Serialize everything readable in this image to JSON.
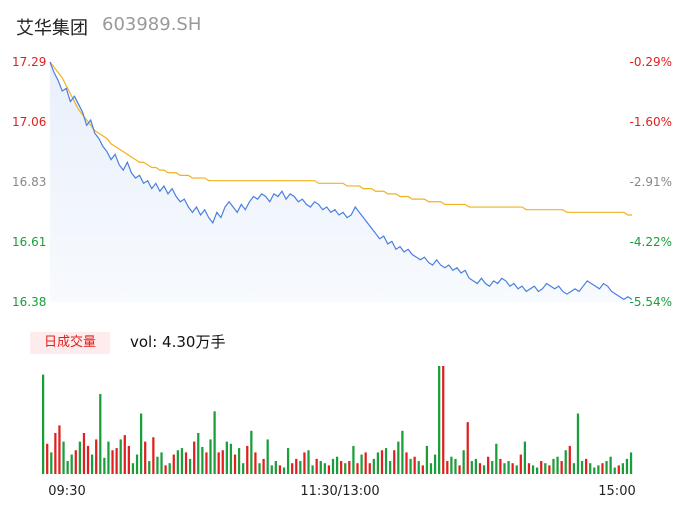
{
  "header": {
    "name": "艾华集团",
    "code": "603989.SH"
  },
  "volume": {
    "tag": "日成交量",
    "text": "vol: 4.30万手"
  },
  "colors": {
    "up": "#e02020",
    "down": "#1a9e3a",
    "price_line": "#4a7fe0",
    "avg_line": "#f2b21e",
    "area_top": "#e9f0fb"
  },
  "chart_data": [
    {
      "type": "line",
      "y_ticks_left": [
        "17.29",
        "17.06",
        "16.83",
        "16.61",
        "16.38"
      ],
      "y_ticks_right": [
        "-0.29%",
        "-1.60%",
        "-2.91%",
        "-4.22%",
        "-5.54%"
      ],
      "ylim": [
        16.38,
        17.29
      ],
      "x_ticks": [
        "09:30",
        "11:30/13:00",
        "15:00"
      ],
      "price_series": [
        17.29,
        17.25,
        17.22,
        17.18,
        17.19,
        17.14,
        17.16,
        17.13,
        17.1,
        17.05,
        17.07,
        17.02,
        17.0,
        16.97,
        16.95,
        16.92,
        16.94,
        16.9,
        16.88,
        16.91,
        16.87,
        16.85,
        16.86,
        16.83,
        16.84,
        16.81,
        16.83,
        16.8,
        16.82,
        16.79,
        16.81,
        16.78,
        16.76,
        16.77,
        16.74,
        16.72,
        16.74,
        16.71,
        16.73,
        16.7,
        16.68,
        16.72,
        16.7,
        16.74,
        16.76,
        16.74,
        16.72,
        16.75,
        16.73,
        16.76,
        16.78,
        16.77,
        16.79,
        16.78,
        16.76,
        16.79,
        16.78,
        16.8,
        16.77,
        16.79,
        16.78,
        16.76,
        16.77,
        16.75,
        16.74,
        16.76,
        16.75,
        16.73,
        16.74,
        16.72,
        16.73,
        16.71,
        16.72,
        16.7,
        16.71,
        16.74,
        16.72,
        16.7,
        16.68,
        16.66,
        16.64,
        16.62,
        16.63,
        16.6,
        16.61,
        16.58,
        16.59,
        16.57,
        16.58,
        16.56,
        16.55,
        16.54,
        16.55,
        16.53,
        16.52,
        16.54,
        16.52,
        16.51,
        16.52,
        16.5,
        16.51,
        16.49,
        16.5,
        16.47,
        16.46,
        16.45,
        16.47,
        16.45,
        16.44,
        16.46,
        16.45,
        16.47,
        16.46,
        16.44,
        16.45,
        16.43,
        16.44,
        16.42,
        16.43,
        16.44,
        16.42,
        16.43,
        16.45,
        16.44,
        16.43,
        16.44,
        16.42,
        16.41,
        16.42,
        16.43,
        16.42,
        16.44,
        16.46,
        16.45,
        16.44,
        16.43,
        16.45,
        16.44,
        16.42,
        16.41,
        16.4,
        16.39,
        16.4,
        16.39
      ],
      "avg_series": [
        17.29,
        17.27,
        17.25,
        17.23,
        17.2,
        17.17,
        17.14,
        17.11,
        17.09,
        17.07,
        17.05,
        17.03,
        17.02,
        17.01,
        17.0,
        16.98,
        16.97,
        16.96,
        16.95,
        16.94,
        16.93,
        16.92,
        16.91,
        16.91,
        16.9,
        16.89,
        16.89,
        16.88,
        16.88,
        16.87,
        16.87,
        16.87,
        16.86,
        16.86,
        16.86,
        16.85,
        16.85,
        16.85,
        16.85,
        16.84,
        16.84,
        16.84,
        16.84,
        16.84,
        16.84,
        16.84,
        16.84,
        16.84,
        16.84,
        16.84,
        16.84,
        16.84,
        16.84,
        16.84,
        16.84,
        16.84,
        16.84,
        16.84,
        16.84,
        16.84,
        16.84,
        16.84,
        16.84,
        16.84,
        16.84,
        16.84,
        16.83,
        16.83,
        16.83,
        16.83,
        16.83,
        16.83,
        16.83,
        16.82,
        16.82,
        16.82,
        16.82,
        16.81,
        16.81,
        16.81,
        16.8,
        16.8,
        16.8,
        16.79,
        16.79,
        16.79,
        16.78,
        16.78,
        16.78,
        16.77,
        16.77,
        16.77,
        16.77,
        16.76,
        16.76,
        16.76,
        16.76,
        16.75,
        16.75,
        16.75,
        16.75,
        16.75,
        16.75,
        16.74,
        16.74,
        16.74,
        16.74,
        16.74,
        16.74,
        16.74,
        16.74,
        16.74,
        16.74,
        16.74,
        16.74,
        16.74,
        16.74,
        16.73,
        16.73,
        16.73,
        16.73,
        16.73,
        16.73,
        16.73,
        16.73,
        16.73,
        16.73,
        16.72,
        16.72,
        16.72,
        16.72,
        16.72,
        16.72,
        16.72,
        16.72,
        16.72,
        16.72,
        16.72,
        16.72,
        16.72,
        16.72,
        16.72,
        16.71,
        16.71
      ]
    },
    {
      "type": "bar",
      "volumes": [
        92,
        28,
        20,
        38,
        45,
        30,
        12,
        18,
        22,
        30,
        38,
        26,
        18,
        32,
        74,
        15,
        30,
        22,
        24,
        32,
        36,
        26,
        10,
        18,
        56,
        30,
        12,
        34,
        16,
        20,
        8,
        10,
        18,
        22,
        24,
        20,
        14,
        30,
        38,
        25,
        20,
        32,
        58,
        20,
        22,
        30,
        28,
        18,
        24,
        10,
        26,
        40,
        20,
        10,
        14,
        32,
        8,
        12,
        8,
        6,
        24,
        10,
        14,
        12,
        20,
        22,
        8,
        14,
        12,
        10,
        8,
        14,
        16,
        12,
        10,
        12,
        26,
        10,
        18,
        20,
        10,
        14,
        20,
        22,
        24,
        12,
        22,
        30,
        40,
        20,
        14,
        16,
        12,
        8,
        26,
        10,
        18,
        100,
        100,
        12,
        16,
        14,
        8,
        22,
        48,
        12,
        14,
        10,
        8,
        16,
        12,
        28,
        14,
        10,
        12,
        10,
        8,
        18,
        30,
        10,
        8,
        6,
        12,
        10,
        8,
        14,
        16,
        12,
        22,
        26,
        10,
        56,
        12,
        14,
        10,
        6,
        8,
        10,
        12,
        16,
        6,
        8,
        10,
        14,
        20
      ],
      "colors": [
        "d",
        "u",
        "d",
        "u",
        "u",
        "d",
        "d",
        "d",
        "u",
        "d",
        "u",
        "u",
        "d",
        "u",
        "d",
        "d",
        "d",
        "u",
        "u",
        "d",
        "u",
        "u",
        "d",
        "d",
        "d",
        "u",
        "d",
        "u",
        "d",
        "d",
        "u",
        "d",
        "u",
        "d",
        "d",
        "u",
        "d",
        "u",
        "d",
        "d",
        "u",
        "d",
        "d",
        "u",
        "u",
        "d",
        "d",
        "u",
        "d",
        "d",
        "u",
        "d",
        "u",
        "d",
        "u",
        "d",
        "d",
        "d",
        "u",
        "d",
        "d",
        "u",
        "u",
        "d",
        "u",
        "d",
        "d",
        "u",
        "d",
        "d",
        "u",
        "d",
        "d",
        "u",
        "d",
        "u",
        "d",
        "u",
        "d",
        "u",
        "u",
        "d",
        "d",
        "u",
        "d",
        "d",
        "u",
        "d",
        "d",
        "u",
        "d",
        "u",
        "d",
        "u",
        "d",
        "d",
        "d",
        "d",
        "u",
        "u",
        "d",
        "d",
        "u",
        "d",
        "u",
        "d",
        "d",
        "u",
        "d",
        "u",
        "d",
        "d",
        "u",
        "d",
        "d",
        "u",
        "d",
        "u",
        "d",
        "u",
        "d",
        "d",
        "u",
        "d",
        "u",
        "d",
        "d",
        "u",
        "d",
        "u",
        "d",
        "d",
        "d",
        "u",
        "d",
        "d",
        "d",
        "u",
        "d",
        "d",
        "d",
        "u",
        "d",
        "d",
        "d"
      ]
    }
  ]
}
